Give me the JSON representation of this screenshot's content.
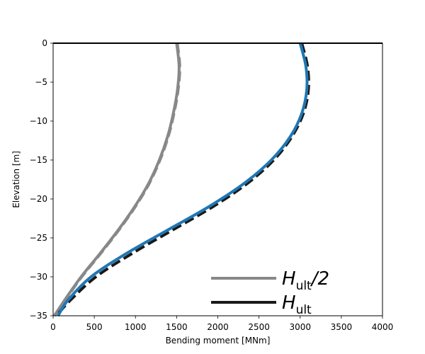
{
  "chart_data": {
    "type": "line",
    "title": "",
    "xlabel": "Bending moment [MNm]",
    "ylabel": "Elevation [m]",
    "xlim": [
      0,
      4000
    ],
    "ylim": [
      -35,
      0
    ],
    "xticks": [
      0,
      500,
      1000,
      1500,
      2000,
      2500,
      3000,
      3500,
      4000
    ],
    "yticks": [
      0,
      -5,
      -10,
      -15,
      -20,
      -25,
      -30,
      -35
    ],
    "xtick_labels": [
      "0",
      "500",
      "1000",
      "1500",
      "2000",
      "2500",
      "3000",
      "3500",
      "4000"
    ],
    "ytick_labels": [
      "0",
      "−5",
      "−10",
      "−15",
      "−20",
      "−25",
      "−30",
      "−35"
    ],
    "grid": false,
    "legend_position": "lower-right",
    "legend": [
      {
        "label_main": "H",
        "label_sub": "ult",
        "label_suffix": "/2",
        "color": "#888888"
      },
      {
        "label_main": "H",
        "label_sub": "ult",
        "label_suffix": "",
        "color": "#1a1a1a"
      }
    ],
    "series": [
      {
        "color": "#888888",
        "style": "dashed",
        "width": 3.5,
        "x": [
          1510,
          1540,
          1520,
          1470,
          1400,
          1300,
          1170,
          1000,
          800,
          580,
          350,
          150,
          20
        ],
        "y": [
          0,
          -3,
          -6,
          -9,
          -12,
          -15,
          -18,
          -21,
          -24,
          -27,
          -30,
          -33,
          -35
        ]
      },
      {
        "color": "#888888",
        "style": "solid",
        "width": 4,
        "x": [
          1500,
          1530,
          1510,
          1460,
          1390,
          1290,
          1160,
          990,
          790,
          570,
          340,
          140,
          15
        ],
        "y": [
          0,
          -3,
          -6,
          -9,
          -12,
          -15,
          -18,
          -21,
          -24,
          -27,
          -30,
          -33,
          -35
        ]
      },
      {
        "color": "#1a1a1a",
        "style": "dashed",
        "width": 4,
        "x": [
          3020,
          3090,
          3100,
          3040,
          2900,
          2680,
          2360,
          1940,
          1450,
          960,
          520,
          210,
          40
        ],
        "y": [
          0,
          -3,
          -6,
          -9,
          -12,
          -15,
          -18,
          -21,
          -24,
          -27,
          -30,
          -33,
          -35
        ]
      },
      {
        "color": "#1f77b4",
        "style": "solid",
        "width": 4,
        "x": [
          3000,
          3070,
          3080,
          3020,
          2880,
          2650,
          2320,
          1890,
          1390,
          890,
          460,
          180,
          60
        ],
        "y": [
          0,
          -3,
          -6,
          -9,
          -12,
          -15,
          -18,
          -21,
          -24,
          -27,
          -30,
          -33,
          -35
        ]
      }
    ]
  }
}
